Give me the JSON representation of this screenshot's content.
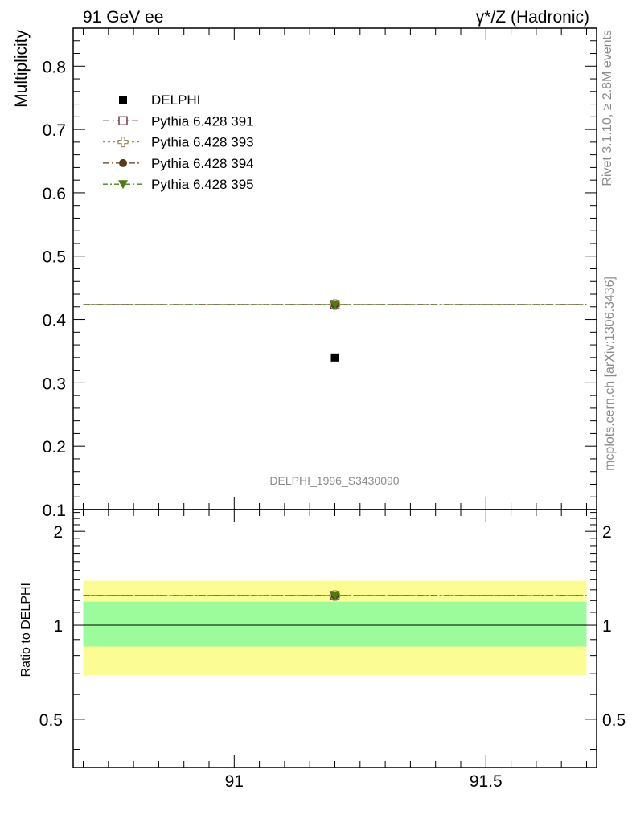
{
  "header": {
    "left": "91 GeV ee",
    "right": "γ*/Z (Hadronic)"
  },
  "side_labels": {
    "rivet": "Rivet 3.1.10, ≥ 2.8M events",
    "mcplots": "mcplots.cern.ch [arXiv:1306.3436]"
  },
  "watermark": "DELPHI_1996_S3430090",
  "chart_data": {
    "type": "scatter",
    "x_range": [
      90.68,
      91.72
    ],
    "main": {
      "ylabel": "Multiplicity",
      "ylim": [
        0.1,
        0.86
      ],
      "y_ticks": [
        "0.1",
        "0.2",
        "0.3",
        "0.4",
        "0.5",
        "0.6",
        "0.7",
        "0.8"
      ],
      "data": {
        "name": "DELPHI",
        "x": 91.2,
        "y": 0.34
      },
      "series": [
        {
          "name": "Pythia 6.428 391",
          "y": 0.4235,
          "color": "#6e3b4b",
          "marker": "open-square"
        },
        {
          "name": "Pythia 6.428 393",
          "y": 0.4235,
          "color": "#a09060",
          "marker": "open-cross"
        },
        {
          "name": "Pythia 6.428 394",
          "y": 0.4235,
          "color": "#5d3a1a",
          "marker": "filled-circle"
        },
        {
          "name": "Pythia 6.428 395",
          "y": 0.4235,
          "color": "#4c7e0f",
          "marker": "filled-triangle-down"
        }
      ]
    },
    "ratio": {
      "ylabel": "Ratio to DELPHI",
      "ylim": [
        0.35,
        2.35
      ],
      "y_ticks": [
        "0.5",
        "1",
        "2"
      ],
      "x_ticks": [
        "91",
        "91.5"
      ],
      "reference": 1,
      "band_inner": [
        0.855,
        1.19
      ],
      "band_outer": [
        0.69,
        1.39
      ],
      "band_inner_color": "#9cfc9c",
      "band_outer_color": "#fcfc94",
      "mc_ratio": 1.2456
    },
    "legend": "top-left",
    "grid": false
  }
}
